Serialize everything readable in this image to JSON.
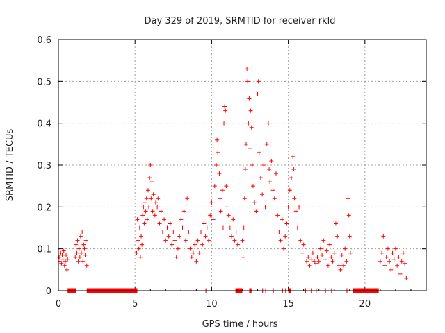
{
  "chart_data": {
    "type": "scatter",
    "title": "Day 329 of 2019, SRMTID for receiver rkld",
    "xlabel": "GPS time / hours",
    "ylabel": "SRMTID / TECUs",
    "xlim": [
      0,
      24
    ],
    "ylim": [
      0,
      0.6
    ],
    "x_ticks": [
      "0",
      "5",
      "10",
      "15",
      "20"
    ],
    "y_ticks": [
      "0",
      "0.1",
      "0.2",
      "0.3",
      "0.4",
      "0.5",
      "0.6"
    ],
    "marker": "+",
    "color": "#ff0000",
    "grid": true,
    "series": [
      {
        "name": "SRMTID",
        "points": [
          [
            0.05,
            0.08
          ],
          [
            0.1,
            0.07
          ],
          [
            0.15,
            0.09
          ],
          [
            0.2,
            0.065
          ],
          [
            0.25,
            0.085
          ],
          [
            0.3,
            0.075
          ],
          [
            0.35,
            0.095
          ],
          [
            0.4,
            0.06
          ],
          [
            0.45,
            0.07
          ],
          [
            0.5,
            0.085
          ],
          [
            0.55,
            0.05
          ],
          [
            0.6,
            0.075
          ],
          [
            1.1,
            0.08
          ],
          [
            1.15,
            0.11
          ],
          [
            1.2,
            0.09
          ],
          [
            1.25,
            0.12
          ],
          [
            1.3,
            0.07
          ],
          [
            1.35,
            0.1
          ],
          [
            1.4,
            0.08
          ],
          [
            1.45,
            0.13
          ],
          [
            1.5,
            0.09
          ],
          [
            1.55,
            0.14
          ],
          [
            1.6,
            0.07
          ],
          [
            1.65,
            0.11
          ],
          [
            1.7,
            0.1
          ],
          [
            1.75,
            0.085
          ],
          [
            1.8,
            0.12
          ],
          [
            1.85,
            0.06
          ],
          [
            5.1,
            0.09
          ],
          [
            5.15,
            0.17
          ],
          [
            5.2,
            0.12
          ],
          [
            5.25,
            0.1
          ],
          [
            5.3,
            0.15
          ],
          [
            5.35,
            0.08
          ],
          [
            5.4,
            0.13
          ],
          [
            5.45,
            0.11
          ],
          [
            5.5,
            0.18
          ],
          [
            5.55,
            0.2
          ],
          [
            5.6,
            0.16
          ],
          [
            5.65,
            0.21
          ],
          [
            5.7,
            0.19
          ],
          [
            5.75,
            0.22
          ],
          [
            5.8,
            0.17
          ],
          [
            5.85,
            0.24
          ],
          [
            5.9,
            0.2
          ],
          [
            5.95,
            0.27
          ],
          [
            6.0,
            0.3
          ],
          [
            6.05,
            0.22
          ],
          [
            6.1,
            0.26
          ],
          [
            6.15,
            0.19
          ],
          [
            6.2,
            0.23
          ],
          [
            6.3,
            0.18
          ],
          [
            6.35,
            0.21
          ],
          [
            6.45,
            0.2
          ],
          [
            6.5,
            0.22
          ],
          [
            6.6,
            0.16
          ],
          [
            6.7,
            0.19
          ],
          [
            6.8,
            0.14
          ],
          [
            6.9,
            0.17
          ],
          [
            7.0,
            0.12
          ],
          [
            7.1,
            0.15
          ],
          [
            7.2,
            0.13
          ],
          [
            7.3,
            0.16
          ],
          [
            7.4,
            0.11
          ],
          [
            7.5,
            0.14
          ],
          [
            7.6,
            0.12
          ],
          [
            7.7,
            0.08
          ],
          [
            7.8,
            0.1
          ],
          [
            7.9,
            0.13
          ],
          [
            8.0,
            0.17
          ],
          [
            8.1,
            0.15
          ],
          [
            8.2,
            0.19
          ],
          [
            8.3,
            0.12
          ],
          [
            8.4,
            0.22
          ],
          [
            8.5,
            0.14
          ],
          [
            8.6,
            0.1
          ],
          [
            8.7,
            0.08
          ],
          [
            8.8,
            0.09
          ],
          [
            8.9,
            0.11
          ],
          [
            9.0,
            0.07
          ],
          [
            9.1,
            0.12
          ],
          [
            9.2,
            0.09
          ],
          [
            9.3,
            0.14
          ],
          [
            9.4,
            0.11
          ],
          [
            9.5,
            0.16
          ],
          [
            9.6,
            0.13
          ],
          [
            9.7,
            0.15
          ],
          [
            9.8,
            0.12
          ],
          [
            9.9,
            0.18
          ],
          [
            10.0,
            0.21
          ],
          [
            10.1,
            0.17
          ],
          [
            10.2,
            0.25
          ],
          [
            10.3,
            0.3
          ],
          [
            10.35,
            0.36
          ],
          [
            10.4,
            0.33
          ],
          [
            10.5,
            0.28
          ],
          [
            10.55,
            0.22
          ],
          [
            10.6,
            0.19
          ],
          [
            10.7,
            0.24
          ],
          [
            10.75,
            0.15
          ],
          [
            10.8,
            0.4
          ],
          [
            10.85,
            0.44
          ],
          [
            10.9,
            0.43
          ],
          [
            10.95,
            0.25
          ],
          [
            11.0,
            0.2
          ],
          [
            11.1,
            0.18
          ],
          [
            11.2,
            0.15
          ],
          [
            11.3,
            0.13
          ],
          [
            11.4,
            0.17
          ],
          [
            11.5,
            0.12
          ],
          [
            11.6,
            0.14
          ],
          [
            11.7,
            0.11
          ],
          [
            12.0,
            0.12
          ],
          [
            12.05,
            0.08
          ],
          [
            12.1,
            0.15
          ],
          [
            12.15,
            0.22
          ],
          [
            12.2,
            0.29
          ],
          [
            12.25,
            0.35
          ],
          [
            12.3,
            0.53
          ],
          [
            12.35,
            0.5
          ],
          [
            12.4,
            0.4
          ],
          [
            12.45,
            0.46
          ],
          [
            12.5,
            0.34
          ],
          [
            12.55,
            0.43
          ],
          [
            12.6,
            0.39
          ],
          [
            12.65,
            0.3
          ],
          [
            12.7,
            0.25
          ],
          [
            12.8,
            0.21
          ],
          [
            12.9,
            0.19
          ],
          [
            13.0,
            0.47
          ],
          [
            13.05,
            0.5
          ],
          [
            13.1,
            0.33
          ],
          [
            13.2,
            0.27
          ],
          [
            13.3,
            0.23
          ],
          [
            13.4,
            0.3
          ],
          [
            13.5,
            0.2
          ],
          [
            13.6,
            0.35
          ],
          [
            13.7,
            0.4
          ],
          [
            13.75,
            0.29
          ],
          [
            13.8,
            0.26
          ],
          [
            13.9,
            0.31
          ],
          [
            14.0,
            0.24
          ],
          [
            14.1,
            0.22
          ],
          [
            14.2,
            0.28
          ],
          [
            14.3,
            0.18
          ],
          [
            14.4,
            0.14
          ],
          [
            14.5,
            0.12
          ],
          [
            14.6,
            0.17
          ],
          [
            14.7,
            0.1
          ],
          [
            14.8,
            0.13
          ],
          [
            14.9,
            0.16
          ],
          [
            15.0,
            0.2
          ],
          [
            15.1,
            0.24
          ],
          [
            15.2,
            0.27
          ],
          [
            15.3,
            0.32
          ],
          [
            15.35,
            0.29
          ],
          [
            15.4,
            0.22
          ],
          [
            15.5,
            0.19
          ],
          [
            15.6,
            0.15
          ],
          [
            15.7,
            0.2
          ],
          [
            15.8,
            0.12
          ],
          [
            15.9,
            0.09
          ],
          [
            16.0,
            0.11
          ],
          [
            16.2,
            0.07
          ],
          [
            16.3,
            0.08
          ],
          [
            16.4,
            0.06
          ],
          [
            16.5,
            0.075
          ],
          [
            16.6,
            0.09
          ],
          [
            16.7,
            0.07
          ],
          [
            16.8,
            0.065
          ],
          [
            16.9,
            0.08
          ],
          [
            17.0,
            0.07
          ],
          [
            17.1,
            0.1
          ],
          [
            17.2,
            0.085
          ],
          [
            17.3,
            0.12
          ],
          [
            17.4,
            0.075
          ],
          [
            17.5,
            0.095
          ],
          [
            17.6,
            0.06
          ],
          [
            17.7,
            0.11
          ],
          [
            17.8,
            0.08
          ],
          [
            17.9,
            0.07
          ],
          [
            18.0,
            0.09
          ],
          [
            18.1,
            0.16
          ],
          [
            18.2,
            0.13
          ],
          [
            18.3,
            0.06
          ],
          [
            18.4,
            0.05
          ],
          [
            18.5,
            0.085
          ],
          [
            18.6,
            0.06
          ],
          [
            18.7,
            0.1
          ],
          [
            18.8,
            0.07
          ],
          [
            18.9,
            0.22
          ],
          [
            18.95,
            0.18
          ],
          [
            19.0,
            0.13
          ],
          [
            19.05,
            0.09
          ],
          [
            21.0,
            0.07
          ],
          [
            21.1,
            0.09
          ],
          [
            21.2,
            0.13
          ],
          [
            21.3,
            0.06
          ],
          [
            21.4,
            0.08
          ],
          [
            21.5,
            0.1
          ],
          [
            21.6,
            0.07
          ],
          [
            21.7,
            0.05
          ],
          [
            21.8,
            0.09
          ],
          [
            21.9,
            0.075
          ],
          [
            22.0,
            0.1
          ],
          [
            22.1,
            0.06
          ],
          [
            22.2,
            0.08
          ],
          [
            22.3,
            0.04
          ],
          [
            22.4,
            0.07
          ],
          [
            22.5,
            0.09
          ],
          [
            22.6,
            0.065
          ],
          [
            22.7,
            0.03
          ]
        ]
      }
    ],
    "zero_segments": [
      [
        0.6,
        1.15
      ],
      [
        1.85,
        5.15
      ],
      [
        9.6,
        9.65
      ],
      [
        11.55,
        12.0
      ],
      [
        12.45,
        12.6
      ],
      [
        13.3,
        13.35
      ],
      [
        13.5,
        13.55
      ],
      [
        14.0,
        14.05
      ],
      [
        14.6,
        14.65
      ],
      [
        14.8,
        14.85
      ],
      [
        15.0,
        15.2
      ],
      [
        16.1,
        16.15
      ],
      [
        16.5,
        16.55
      ],
      [
        16.8,
        16.85
      ],
      [
        17.4,
        17.45
      ],
      [
        17.8,
        17.85
      ],
      [
        18.8,
        18.85
      ],
      [
        19.2,
        20.9
      ]
    ]
  }
}
